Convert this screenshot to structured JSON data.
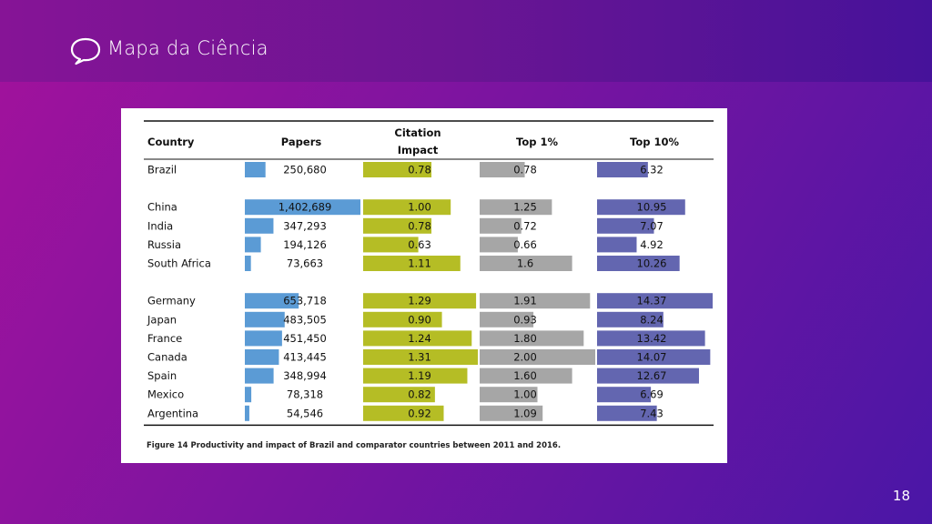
{
  "slide": {
    "title": "Mapa da Ciência",
    "icon": "speech-bubble-icon",
    "page_number": "18"
  },
  "chart_data": {
    "type": "table",
    "title": "",
    "caption": "Figure 14 Productivity and impact of Brazil and comparator countries between 2011 and 2016.",
    "columns": {
      "country": "Country",
      "papers": "Papers",
      "citation_line1": "Citation",
      "citation_line2": "Impact",
      "top1": "Top 1%",
      "top10": "Top 10%"
    },
    "groups": [
      {
        "rows": [
          {
            "country": "Brazil",
            "papers": 250680,
            "papers_label": "250,680",
            "citation": 0.78,
            "citation_label": "0.78",
            "top1": 0.78,
            "top1_label": "0.78",
            "top10": 6.32,
            "top10_label": "6.32"
          }
        ]
      },
      {
        "rows": [
          {
            "country": "China",
            "papers": 1402689,
            "papers_label": "1,402,689",
            "citation": 1.0,
            "citation_label": "1.00",
            "top1": 1.25,
            "top1_label": "1.25",
            "top10": 10.95,
            "top10_label": "10.95"
          },
          {
            "country": "India",
            "papers": 347293,
            "papers_label": "347,293",
            "citation": 0.78,
            "citation_label": "0.78",
            "top1": 0.72,
            "top1_label": "0.72",
            "top10": 7.07,
            "top10_label": "7.07"
          },
          {
            "country": "Russia",
            "papers": 194126,
            "papers_label": "194,126",
            "citation": 0.63,
            "citation_label": "0.63",
            "top1": 0.66,
            "top1_label": "0.66",
            "top10": 4.92,
            "top10_label": "4.92"
          },
          {
            "country": "South Africa",
            "papers": 73663,
            "papers_label": "73,663",
            "citation": 1.11,
            "citation_label": "1.11",
            "top1": 1.6,
            "top1_label": "1.6",
            "top10": 10.26,
            "top10_label": "10.26"
          }
        ]
      },
      {
        "rows": [
          {
            "country": "Germany",
            "papers": 653718,
            "papers_label": "653,718",
            "citation": 1.29,
            "citation_label": "1.29",
            "top1": 1.91,
            "top1_label": "1.91",
            "top10": 14.37,
            "top10_label": "14.37"
          },
          {
            "country": "Japan",
            "papers": 483505,
            "papers_label": "483,505",
            "citation": 0.9,
            "citation_label": "0.90",
            "top1": 0.93,
            "top1_label": "0.93",
            "top10": 8.24,
            "top10_label": "8.24"
          },
          {
            "country": "France",
            "papers": 451450,
            "papers_label": "451,450",
            "citation": 1.24,
            "citation_label": "1.24",
            "top1": 1.8,
            "top1_label": "1.80",
            "top10": 13.42,
            "top10_label": "13.42"
          },
          {
            "country": "Canada",
            "papers": 413445,
            "papers_label": "413,445",
            "citation": 1.31,
            "citation_label": "1.31",
            "top1": 2.0,
            "top1_label": "2.00",
            "top10": 14.07,
            "top10_label": "14.07"
          },
          {
            "country": "Spain",
            "papers": 348994,
            "papers_label": "348,994",
            "citation": 1.19,
            "citation_label": "1.19",
            "top1": 1.6,
            "top1_label": "1.60",
            "top10": 12.67,
            "top10_label": "12.67"
          },
          {
            "country": "Mexico",
            "papers": 78318,
            "papers_label": "78,318",
            "citation": 0.82,
            "citation_label": "0.82",
            "top1": 1.0,
            "top1_label": "1.00",
            "top10": 6.69,
            "top10_label": "6.69"
          },
          {
            "country": "Argentina",
            "papers": 54546,
            "papers_label": "54,546",
            "citation": 0.92,
            "citation_label": "0.92",
            "top1": 1.09,
            "top1_label": "1.09",
            "top10": 7.43,
            "top10_label": "7.43"
          }
        ]
      }
    ],
    "bar_max": {
      "papers": 1402689,
      "citation": 1.31,
      "top1": 2.0,
      "top10": 14.37
    },
    "colors": {
      "papers": "#5b9bd5",
      "citation": "#b5bd25",
      "top1": "#a6a6a6",
      "top10": "#6366b0"
    }
  }
}
